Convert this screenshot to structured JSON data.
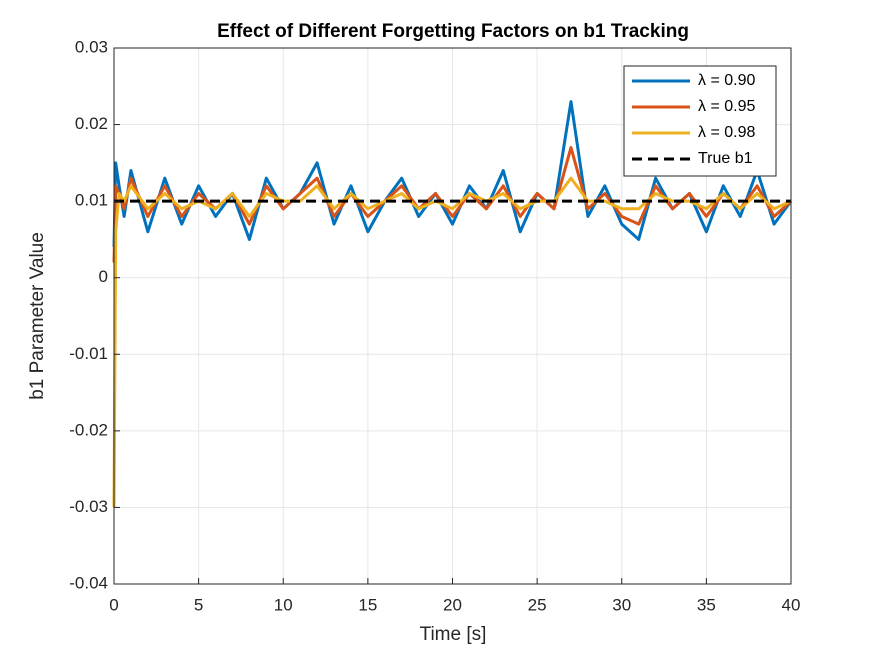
{
  "chart_data": {
    "type": "line",
    "title": "Effect of Different Forgetting Factors on b1 Tracking",
    "xlabel": "Time [s]",
    "ylabel": "b1 Parameter Value",
    "x": [
      0,
      0.1,
      0.3,
      0.6,
      1,
      2,
      3,
      4,
      5,
      6,
      7,
      8,
      9,
      10,
      11,
      12,
      13,
      14,
      15,
      16,
      17,
      18,
      19,
      20,
      21,
      22,
      23,
      24,
      25,
      26,
      27,
      28,
      29,
      30,
      31,
      32,
      33,
      34,
      35,
      36,
      37,
      38,
      39,
      40
    ],
    "series": [
      {
        "name": "λ = 0.90",
        "color": "#0072BD",
        "values": [
          0.004,
          0.015,
          0.012,
          0.008,
          0.014,
          0.006,
          0.013,
          0.007,
          0.012,
          0.008,
          0.011,
          0.005,
          0.013,
          0.009,
          0.011,
          0.015,
          0.007,
          0.012,
          0.006,
          0.01,
          0.013,
          0.008,
          0.011,
          0.007,
          0.012,
          0.009,
          0.014,
          0.006,
          0.011,
          0.009,
          0.023,
          0.008,
          0.012,
          0.007,
          0.005,
          0.013,
          0.009,
          0.011,
          0.006,
          0.012,
          0.008,
          0.014,
          0.007,
          0.01
        ]
      },
      {
        "name": "λ = 0.95",
        "color": "#D95319",
        "values": [
          0.002,
          0.012,
          0.011,
          0.009,
          0.013,
          0.008,
          0.012,
          0.008,
          0.011,
          0.009,
          0.011,
          0.007,
          0.012,
          0.009,
          0.011,
          0.013,
          0.008,
          0.011,
          0.008,
          0.01,
          0.012,
          0.009,
          0.011,
          0.008,
          0.011,
          0.009,
          0.012,
          0.008,
          0.011,
          0.009,
          0.017,
          0.009,
          0.011,
          0.008,
          0.007,
          0.012,
          0.009,
          0.011,
          0.008,
          0.011,
          0.009,
          0.012,
          0.008,
          0.01
        ]
      },
      {
        "name": "λ = 0.98",
        "color": "#EDB120",
        "values": [
          -0.03,
          0.006,
          0.011,
          0.01,
          0.012,
          0.009,
          0.011,
          0.009,
          0.01,
          0.009,
          0.011,
          0.008,
          0.011,
          0.01,
          0.01,
          0.012,
          0.009,
          0.011,
          0.009,
          0.01,
          0.011,
          0.009,
          0.01,
          0.009,
          0.011,
          0.01,
          0.011,
          0.009,
          0.01,
          0.01,
          0.013,
          0.01,
          0.01,
          0.009,
          0.009,
          0.011,
          0.01,
          0.01,
          0.009,
          0.011,
          0.009,
          0.011,
          0.009,
          0.01
        ]
      },
      {
        "name": "True b1",
        "color": "#000000",
        "dashed": true,
        "x": [
          0,
          40
        ],
        "values": [
          0.01,
          0.01
        ]
      }
    ],
    "xlim": [
      0,
      40
    ],
    "xticks": [
      0,
      5,
      10,
      15,
      20,
      25,
      30,
      35,
      40
    ],
    "ylim": [
      -0.04,
      0.03
    ],
    "yticks": [
      -0.04,
      -0.03,
      -0.02,
      -0.01,
      0,
      0.01,
      0.02,
      0.03
    ],
    "grid": true,
    "legend": "northeast"
  }
}
